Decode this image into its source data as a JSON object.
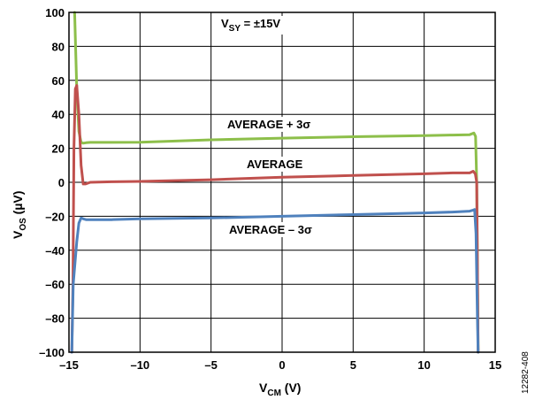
{
  "chart_data": {
    "type": "line",
    "xlabel": "V",
    "xlabel_sub": "CM",
    "xlabel_unit": " (V)",
    "ylabel": "V",
    "ylabel_sub": "OS",
    "ylabel_unit": " (µV)",
    "xlim": [
      -15,
      15
    ],
    "ylim": [
      -100,
      100
    ],
    "x_ticks": [
      -15,
      -10,
      -5,
      0,
      5,
      10,
      15
    ],
    "y_ticks": [
      -100,
      -80,
      -60,
      -40,
      -20,
      0,
      20,
      40,
      60,
      80,
      100
    ],
    "x_tick_labels": [
      "–15",
      "–10",
      "–5",
      "0",
      "5",
      "10",
      "15"
    ],
    "y_tick_labels": [
      "–100",
      "–80",
      "–60",
      "–40",
      "–20",
      "0",
      "20",
      "40",
      "60",
      "80",
      "100"
    ],
    "grid": true,
    "annotations": {
      "supply_main": "V",
      "supply_sub": "SY",
      "supply_rest": " = ±15V",
      "plus": "AVERAGE + 3σ",
      "avg": "AVERAGE",
      "minus": "AVERAGE – 3σ"
    },
    "figure_id": "12282-408",
    "series": [
      {
        "label_ref": "plus",
        "color": "#8dbf4a",
        "x": [
          -14.6,
          -14.55,
          -14.45,
          -14.3,
          -14.15,
          -14.0,
          -13.8,
          -13.5,
          -12,
          -10,
          -5,
          0,
          5,
          10,
          12,
          13.2,
          13.5,
          13.62,
          13.7,
          13.8
        ],
        "y": [
          100,
          85,
          55,
          30,
          23.5,
          23,
          23.3,
          23.5,
          23.5,
          23.6,
          25,
          26,
          26.8,
          27.5,
          27.8,
          28,
          29,
          27,
          0,
          -100
        ]
      },
      {
        "label_ref": "avg",
        "color": "#c0504d",
        "x": [
          -14.8,
          -14.72,
          -14.65,
          -14.55,
          -14.45,
          -14.3,
          -14.15,
          -14.0,
          -13.85,
          -13.5,
          -12,
          -10,
          -5,
          0,
          5,
          10,
          12,
          13.2,
          13.45,
          13.6,
          13.7,
          13.8
        ],
        "y": [
          -100,
          -60,
          20,
          55,
          57,
          40,
          10,
          -1,
          -1,
          0,
          0.3,
          0.5,
          1.5,
          3,
          4,
          5,
          5.5,
          5.5,
          6.5,
          5,
          0,
          -100
        ]
      },
      {
        "label_ref": "minus",
        "color": "#4f81bd",
        "x": [
          -14.8,
          -14.75,
          -14.7,
          -14.6,
          -14.45,
          -14.3,
          -14.15,
          -14.0,
          -13.8,
          -13.5,
          -12,
          -10,
          -5,
          0,
          5,
          10,
          12,
          13.2,
          13.4,
          13.55,
          13.65,
          13.75,
          13.8
        ],
        "y": [
          -100,
          -80,
          -60,
          -50,
          -35,
          -24,
          -21,
          -21.5,
          -22,
          -22,
          -22,
          -21.5,
          -21,
          -20,
          -19,
          -18,
          -17.5,
          -17,
          -16.5,
          -16,
          -30,
          -80,
          -100
        ]
      }
    ]
  }
}
